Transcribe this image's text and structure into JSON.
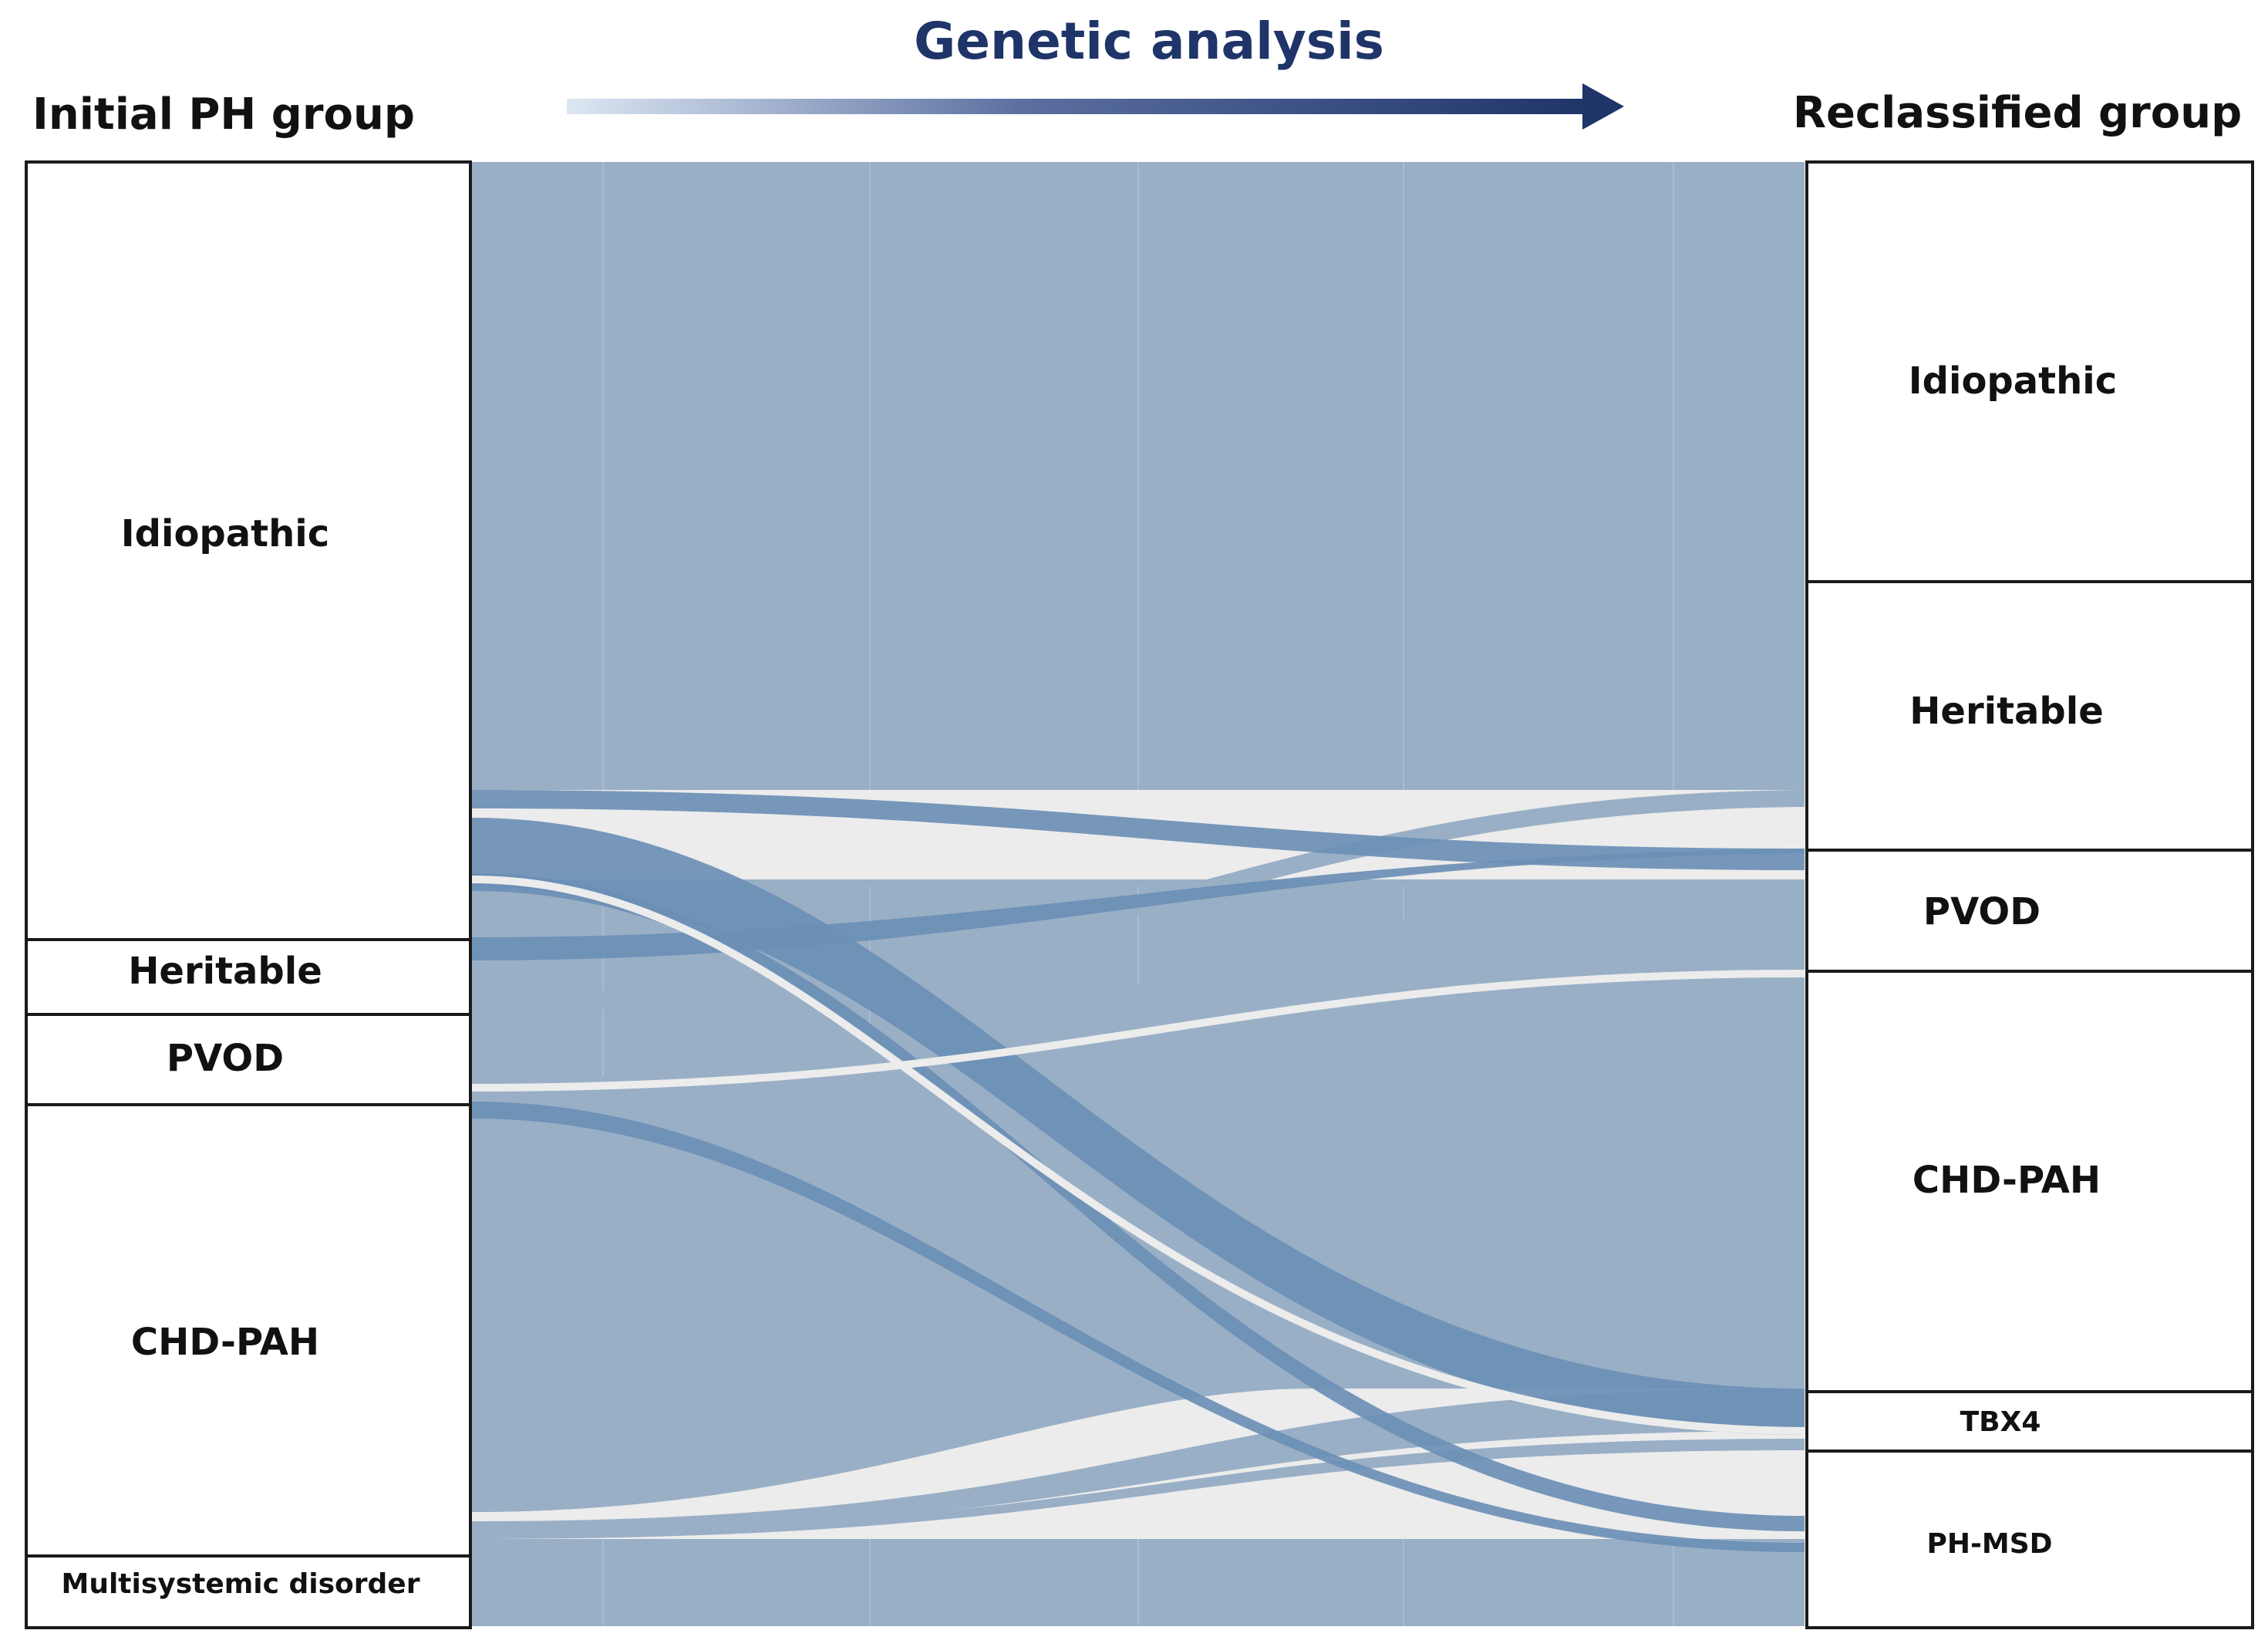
{
  "colors": {
    "flow_base": "#99afc6",
    "flow_highlight": "#6b8fb5",
    "gap": "#ececec",
    "arrow_dark": "#1f3468",
    "arrow_light": "#dde7f3",
    "title_color": "#1f3468"
  },
  "header": {
    "left_title": "Initial PH group",
    "center_title": "Genetic analysis",
    "right_title": "Reclassified group",
    "arrow_icon": "right-arrow-icon"
  },
  "initial_groups": [
    {
      "label": "Idiopathic"
    },
    {
      "label": "Heritable"
    },
    {
      "label": "PVOD"
    },
    {
      "label": "CHD-PAH"
    },
    {
      "label": "Multisystemic disorder"
    }
  ],
  "reclassified_groups": [
    {
      "label": "Idiopathic"
    },
    {
      "label": "Heritable"
    },
    {
      "label": "PVOD"
    },
    {
      "label": "CHD-PAH"
    },
    {
      "label": "TBX4"
    },
    {
      "label": "PH-MSD"
    }
  ],
  "flows": [
    {
      "from": "Idiopathic",
      "to": "Idiopathic"
    },
    {
      "from": "Idiopathic",
      "to": "Heritable"
    },
    {
      "from": "Idiopathic",
      "to": "PVOD"
    },
    {
      "from": "Idiopathic",
      "to": "TBX4"
    },
    {
      "from": "Idiopathic",
      "to": "PH-MSD"
    },
    {
      "from": "Heritable",
      "to": "Heritable"
    },
    {
      "from": "PVOD",
      "to": "PVOD"
    },
    {
      "from": "PVOD",
      "to": "PH-MSD"
    },
    {
      "from": "CHD-PAH",
      "to": "CHD-PAH"
    },
    {
      "from": "CHD-PAH",
      "to": "TBX4"
    },
    {
      "from": "CHD-PAH",
      "to": "PH-MSD"
    },
    {
      "from": "Multisystemic disorder",
      "to": "PH-MSD"
    }
  ]
}
